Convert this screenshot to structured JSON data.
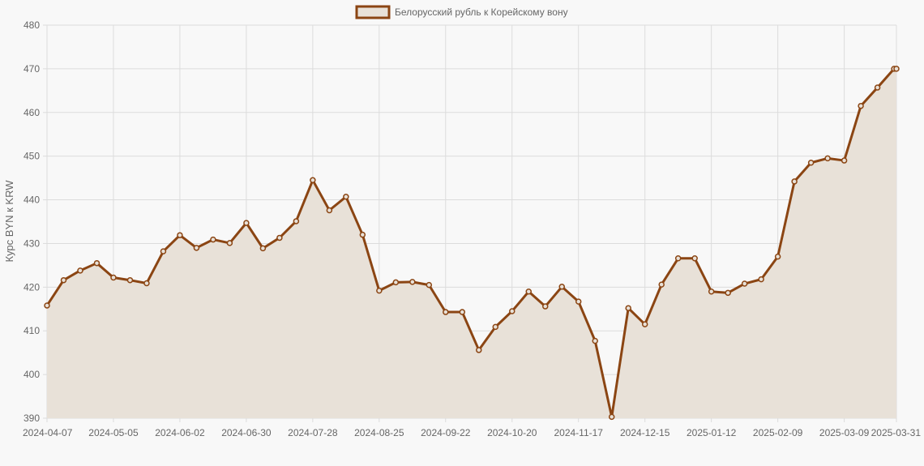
{
  "chart_data": {
    "type": "line",
    "legend": {
      "label": "Белорусский рубль к Корейскому вону",
      "placement": "top-center"
    },
    "ylabel": "Курс BYN к KRW",
    "xlabel": "",
    "ylim": [
      390,
      480
    ],
    "y_ticks": [
      390,
      400,
      410,
      420,
      430,
      440,
      450,
      460,
      470,
      480
    ],
    "x_tick_labels": [
      "2024-04-07",
      "2024-05-05",
      "2024-06-02",
      "2024-06-30",
      "2024-07-28",
      "2024-08-25",
      "2024-09-22",
      "2024-10-20",
      "2024-11-17",
      "2024-12-15",
      "2025-01-12",
      "2025-02-09",
      "2025-03-09",
      "2025-03-31"
    ],
    "x": [
      "2024-04-07",
      "2024-04-14",
      "2024-04-21",
      "2024-04-28",
      "2024-05-05",
      "2024-05-12",
      "2024-05-19",
      "2024-05-26",
      "2024-06-02",
      "2024-06-09",
      "2024-06-16",
      "2024-06-23",
      "2024-06-30",
      "2024-07-07",
      "2024-07-14",
      "2024-07-21",
      "2024-07-28",
      "2024-08-04",
      "2024-08-11",
      "2024-08-18",
      "2024-08-25",
      "2024-09-01",
      "2024-09-08",
      "2024-09-15",
      "2024-09-22",
      "2024-09-29",
      "2024-10-06",
      "2024-10-13",
      "2024-10-20",
      "2024-10-27",
      "2024-11-03",
      "2024-11-10",
      "2024-11-17",
      "2024-11-24",
      "2024-12-01",
      "2024-12-08",
      "2024-12-15",
      "2024-12-22",
      "2024-12-29",
      "2025-01-05",
      "2025-01-12",
      "2025-01-19",
      "2025-01-26",
      "2025-02-02",
      "2025-02-09",
      "2025-02-16",
      "2025-02-23",
      "2025-03-02",
      "2025-03-09",
      "2025-03-16",
      "2025-03-23",
      "2025-03-30",
      "2025-03-31"
    ],
    "series": [
      {
        "name": "Белорусский рубль к Корейскому вону",
        "values": [
          415.8,
          421.6,
          423.8,
          425.5,
          422.2,
          421.6,
          420.9,
          428.2,
          431.9,
          429.0,
          430.9,
          430.1,
          434.7,
          428.9,
          431.3,
          435.1,
          444.5,
          437.6,
          440.7,
          432.0,
          419.2,
          421.1,
          421.2,
          420.5,
          414.3,
          414.3,
          405.6,
          410.9,
          414.5,
          419.0,
          415.6,
          420.1,
          416.7,
          407.7,
          390.3,
          415.2,
          411.5,
          420.6,
          426.6,
          426.6,
          419.0,
          418.7,
          420.8,
          421.8,
          427.0,
          444.2,
          448.5,
          449.5,
          449.0,
          461.5,
          465.7,
          470.0,
          470.0
        ]
      }
    ],
    "grid": true,
    "colors": {
      "line": "#8b4513",
      "fill": "#e8e1d8",
      "grid": "#dcdcdc",
      "text": "#666666",
      "background": "#f8f8f8"
    }
  }
}
